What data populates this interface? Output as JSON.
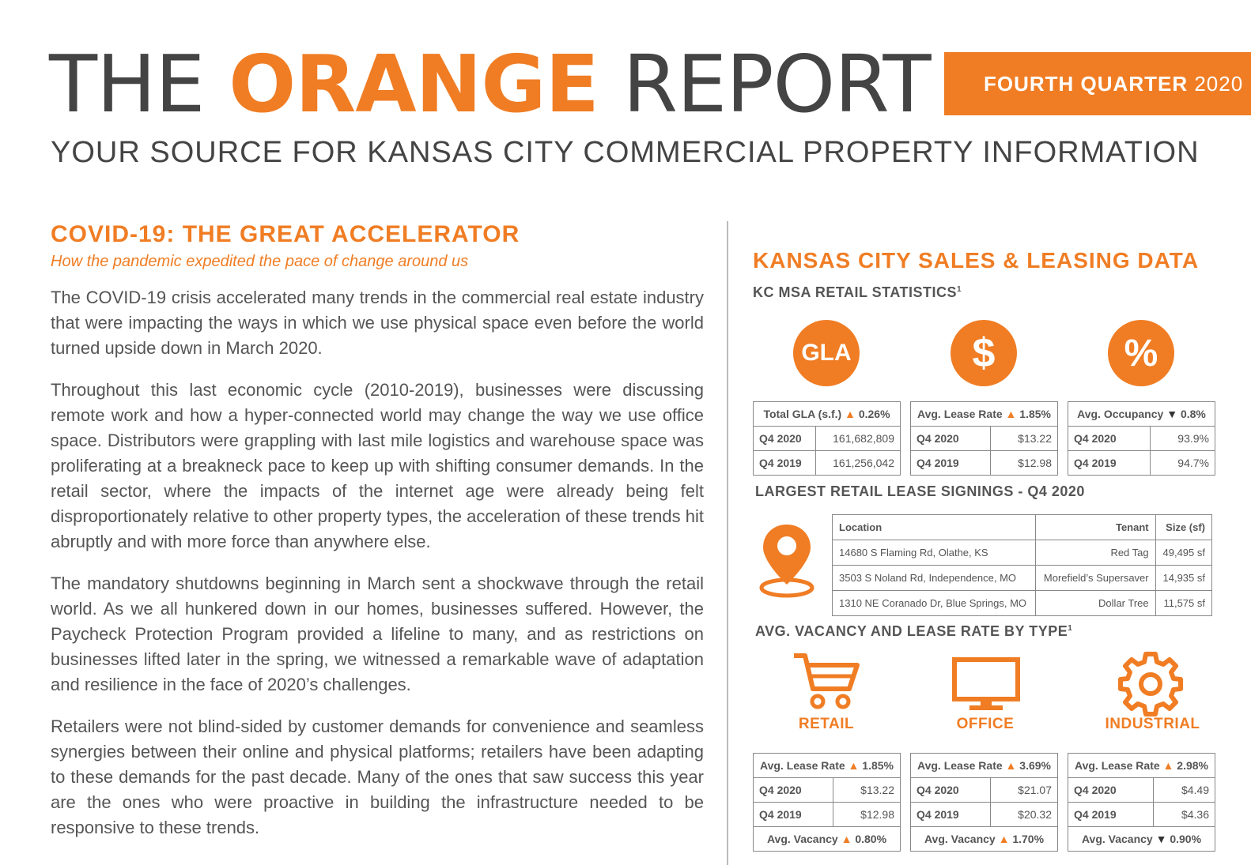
{
  "masthead": {
    "word1": "THE",
    "word2": "ORANGE",
    "word3": "REPORT"
  },
  "quarter": {
    "label": "FOURTH QUARTER",
    "year": "2020"
  },
  "tagline": "YOUR SOURCE FOR KANSAS CITY COMMERCIAL PROPERTY INFORMATION",
  "article": {
    "title": "COVID-19: THE GREAT ACCELERATOR",
    "subtitle": "How the pandemic expedited the pace of change around us",
    "paragraphs": [
      "The COVID-19 crisis accelerated many trends in the commercial real estate industry that were impacting the ways in which we use physical space even before the world turned upside down in March 2020.",
      "Throughout this last economic cycle (2010-2019), businesses were discussing remote work and how a hyper-connected world may change the way we use office space. Distributors were grappling with last mile logistics and warehouse space was proliferating at a breakneck pace to keep up with shifting consumer demands. In the retail sector, where the impacts of the internet age were already being felt disproportionately relative to other property types, the acceleration of these trends hit abruptly and with more force than anywhere else.",
      "The mandatory shutdowns beginning in March sent a shockwave through the retail world. As we all hunkered down in our homes, businesses suffered. However, the Paycheck Protection Program provided a lifeline to many, and as restrictions on businesses lifted later in the spring, we witnessed a remarkable wave of adaptation and resilience in the face of 2020’s challenges.",
      "Retailers were not blind-sided by customer demands for convenience and seamless synergies between their online and physical platforms; retailers have been adapting to these demands for the past decade. Many of the ones that saw success this year are the ones who were proactive in building the infrastructure needed to be responsive to these trends."
    ]
  },
  "sidebar": {
    "title": "KANSAS CITY SALES & LEASING DATA",
    "retail_stats_heading": "KC MSA RETAIL STATISTICS",
    "footnote": "1",
    "icons": {
      "gla": "GLA",
      "dollar": "$",
      "percent": "%"
    },
    "retail_stats": [
      {
        "header": "Total GLA (s.f.)",
        "change": "0.26%",
        "direction": "up",
        "rows": [
          {
            "label": "Q4 2020",
            "value": "161,682,809"
          },
          {
            "label": "Q4 2019",
            "value": "161,256,042"
          }
        ]
      },
      {
        "header": "Avg. Lease Rate",
        "change": "1.85%",
        "direction": "up",
        "rows": [
          {
            "label": "Q4 2020",
            "value": "$13.22"
          },
          {
            "label": "Q4 2019",
            "value": "$12.98"
          }
        ]
      },
      {
        "header": "Avg. Occupancy",
        "change": "0.8%",
        "direction": "down",
        "rows": [
          {
            "label": "Q4 2020",
            "value": "93.9%"
          },
          {
            "label": "Q4 2019",
            "value": "94.7%"
          }
        ]
      }
    ],
    "lease_heading": "LARGEST RETAIL LEASE SIGNINGS - Q4 2020",
    "lease_table": {
      "headers": [
        "Location",
        "Tenant",
        "Size (sf)"
      ],
      "rows": [
        [
          "14680 S Flaming Rd, Olathe, KS",
          "Red Tag",
          "49,495 sf"
        ],
        [
          "3503 S Noland Rd, Independence, MO",
          "Morefield’s Supersaver",
          "14,935 sf"
        ],
        [
          "1310 NE Coranado Dr, Blue Springs, MO",
          "Dollar Tree",
          "11,575 sf"
        ]
      ]
    },
    "vacancy_heading": "AVG. VACANCY AND LEASE RATE BY TYPE",
    "types": [
      {
        "label": "RETAIL",
        "lease_header": "Avg. Lease Rate",
        "lease_change": "1.85%",
        "lease_dir": "up",
        "rows": [
          {
            "label": "Q4 2020",
            "value": "$13.22"
          },
          {
            "label": "Q4 2019",
            "value": "$12.98"
          }
        ],
        "vac_header": "Avg. Vacancy",
        "vac_change": "0.80%",
        "vac_dir": "up"
      },
      {
        "label": "OFFICE",
        "lease_header": "Avg. Lease Rate",
        "lease_change": "3.69%",
        "lease_dir": "up",
        "rows": [
          {
            "label": "Q4 2020",
            "value": "$21.07"
          },
          {
            "label": "Q4 2019",
            "value": "$20.32"
          }
        ],
        "vac_header": "Avg. Vacancy",
        "vac_change": "1.70%",
        "vac_dir": "up"
      },
      {
        "label": "INDUSTRIAL",
        "lease_header": "Avg. Lease Rate",
        "lease_change": "2.98%",
        "lease_dir": "up",
        "rows": [
          {
            "label": "Q4 2020",
            "value": "$4.49"
          },
          {
            "label": "Q4 2019",
            "value": "$4.36"
          }
        ],
        "vac_header": "Avg. Vacancy",
        "vac_change": "0.90%",
        "vac_dir": "down"
      }
    ],
    "colors": {
      "accent": "#f07d24",
      "text": "#555555",
      "title": "#444444"
    },
    "icon_names": [
      "location-pin-icon",
      "shopping-cart-icon",
      "monitor-icon",
      "gear-icon"
    ]
  }
}
